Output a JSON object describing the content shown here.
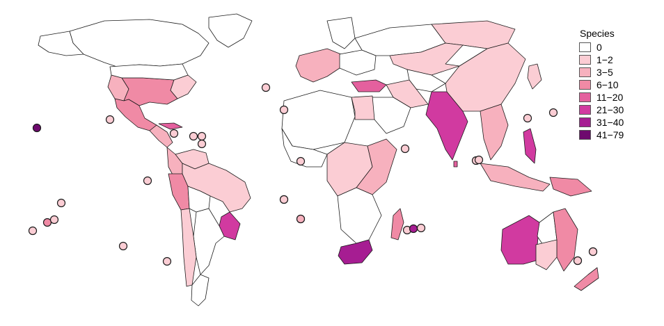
{
  "legend": {
    "title": "Species",
    "classes": [
      {
        "label": "0",
        "color": "#ffffff"
      },
      {
        "label": "1−2",
        "color": "#fbcdd4"
      },
      {
        "label": "3−5",
        "color": "#f7b1be"
      },
      {
        "label": "6−10",
        "color": "#f08aa5"
      },
      {
        "label": "11−20",
        "color": "#e4609e"
      },
      {
        "label": "21−30",
        "color": "#d13aa0"
      },
      {
        "label": "31−40",
        "color": "#a61d92"
      },
      {
        "label": "41−79",
        "color": "#6e0a6e"
      }
    ]
  },
  "regions": [
    {
      "name": "canada",
      "class": 0
    },
    {
      "name": "alaska",
      "class": 0
    },
    {
      "name": "greenland",
      "class": 0
    },
    {
      "name": "usa-west",
      "class": 2
    },
    {
      "name": "usa-south",
      "class": 3
    },
    {
      "name": "usa-east",
      "class": 1
    },
    {
      "name": "usa-north",
      "class": 0
    },
    {
      "name": "mexico",
      "class": 3
    },
    {
      "name": "central-america",
      "class": 2
    },
    {
      "name": "cuba",
      "class": 4
    },
    {
      "name": "colombia",
      "class": 2
    },
    {
      "name": "venezuela",
      "class": 1
    },
    {
      "name": "peru",
      "class": 3
    },
    {
      "name": "brazil",
      "class": 1
    },
    {
      "name": "bolivia",
      "class": 0
    },
    {
      "name": "southeast-brazil",
      "class": 5
    },
    {
      "name": "argentina",
      "class": 0
    },
    {
      "name": "chile",
      "class": 1
    },
    {
      "name": "patagonia",
      "class": 0
    },
    {
      "name": "western-europe",
      "class": 2
    },
    {
      "name": "scandinavia",
      "class": 0
    },
    {
      "name": "eastern-europe",
      "class": 0
    },
    {
      "name": "turkey",
      "class": 4
    },
    {
      "name": "russia-west",
      "class": 0
    },
    {
      "name": "russia-north",
      "class": 1
    },
    {
      "name": "kazakhstan",
      "class": 1
    },
    {
      "name": "central-asia",
      "class": 0
    },
    {
      "name": "iran",
      "class": 1
    },
    {
      "name": "arabia",
      "class": 0
    },
    {
      "name": "north-africa",
      "class": 0
    },
    {
      "name": "egypt",
      "class": 1
    },
    {
      "name": "west-africa",
      "class": 0
    },
    {
      "name": "central-africa",
      "class": 1
    },
    {
      "name": "east-africa",
      "class": 2
    },
    {
      "name": "southern-africa",
      "class": 0
    },
    {
      "name": "south-africa",
      "class": 6
    },
    {
      "name": "madagascar",
      "class": 3
    },
    {
      "name": "india",
      "class": 5
    },
    {
      "name": "china",
      "class": 1
    },
    {
      "name": "mongolia",
      "class": 0
    },
    {
      "name": "southeast-asia",
      "class": 2
    },
    {
      "name": "philippines",
      "class": 5
    },
    {
      "name": "indonesia",
      "class": 2
    },
    {
      "name": "new-guinea",
      "class": 3
    },
    {
      "name": "japan",
      "class": 1
    },
    {
      "name": "australia-west",
      "class": 5
    },
    {
      "name": "australia-central",
      "class": 0
    },
    {
      "name": "australia-east",
      "class": 3
    },
    {
      "name": "australia-south",
      "class": 1
    },
    {
      "name": "new-zealand",
      "class": 3
    },
    {
      "name": "sri-lanka",
      "class": 4
    }
  ],
  "islands": [
    {
      "name": "hawaii",
      "class": 7
    },
    {
      "name": "galapagos",
      "class": 1
    },
    {
      "name": "bermuda",
      "class": 1
    },
    {
      "name": "azores",
      "class": 1
    },
    {
      "name": "canary-islands",
      "class": 1
    },
    {
      "name": "cape-verde",
      "class": 1
    },
    {
      "name": "caribbean-1",
      "class": 1
    },
    {
      "name": "caribbean-2",
      "class": 1
    },
    {
      "name": "caribbean-3",
      "class": 1
    },
    {
      "name": "caribbean-4",
      "class": 1
    },
    {
      "name": "revillagigedo",
      "class": 1
    },
    {
      "name": "ascension",
      "class": 1
    },
    {
      "name": "st-helena",
      "class": 2
    },
    {
      "name": "tristan",
      "class": 1
    },
    {
      "name": "juan-fernandez",
      "class": 1
    },
    {
      "name": "marquesas",
      "class": 1
    },
    {
      "name": "tahiti",
      "class": 3
    },
    {
      "name": "tuamotu",
      "class": 1
    },
    {
      "name": "cook-islands",
      "class": 1
    },
    {
      "name": "seychelles",
      "class": 1
    },
    {
      "name": "mauritius",
      "class": 1
    },
    {
      "name": "reunion",
      "class": 6
    },
    {
      "name": "rodrigues",
      "class": 1
    },
    {
      "name": "maldives",
      "class": 1
    },
    {
      "name": "ogasawara",
      "class": 1
    },
    {
      "name": "taiwan-islands",
      "class": 1
    },
    {
      "name": "mariana",
      "class": 1
    },
    {
      "name": "christmas-island",
      "class": 1
    },
    {
      "name": "norfolk",
      "class": 1
    },
    {
      "name": "lord-howe",
      "class": 1
    },
    {
      "name": "kermadec",
      "class": 1
    },
    {
      "name": "easter-island",
      "class": 1
    }
  ]
}
